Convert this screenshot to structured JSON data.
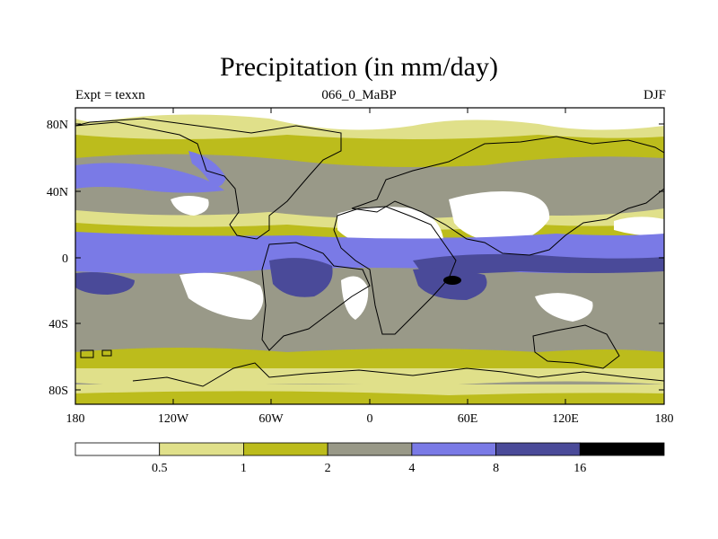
{
  "title": "Precipitation (in mm/day)",
  "subtitle_left": "Expt = texxn",
  "subtitle_center": "066_0_MaBP",
  "subtitle_right": "DJF",
  "lat_labels": [
    "80N",
    "40N",
    "0",
    "40S",
    "80S"
  ],
  "lon_labels": [
    "180",
    "120W",
    "60W",
    "0",
    "60E",
    "120E",
    "180"
  ],
  "colorbar": {
    "labels": [
      "0.5",
      "1",
      "2",
      "4",
      "8",
      "16"
    ],
    "colors": [
      "#ffffff",
      "#e0e08a",
      "#bcbc1c",
      "#999988",
      "#7a7ae6",
      "#4a4a99",
      "#000000"
    ]
  },
  "colors": {
    "dry": "#ffffff",
    "light": "#e0e08a",
    "olive": "#bcbc1c",
    "gray": "#999988",
    "blue": "#7a7ae6",
    "navy": "#4a4a99",
    "black": "#000000"
  }
}
